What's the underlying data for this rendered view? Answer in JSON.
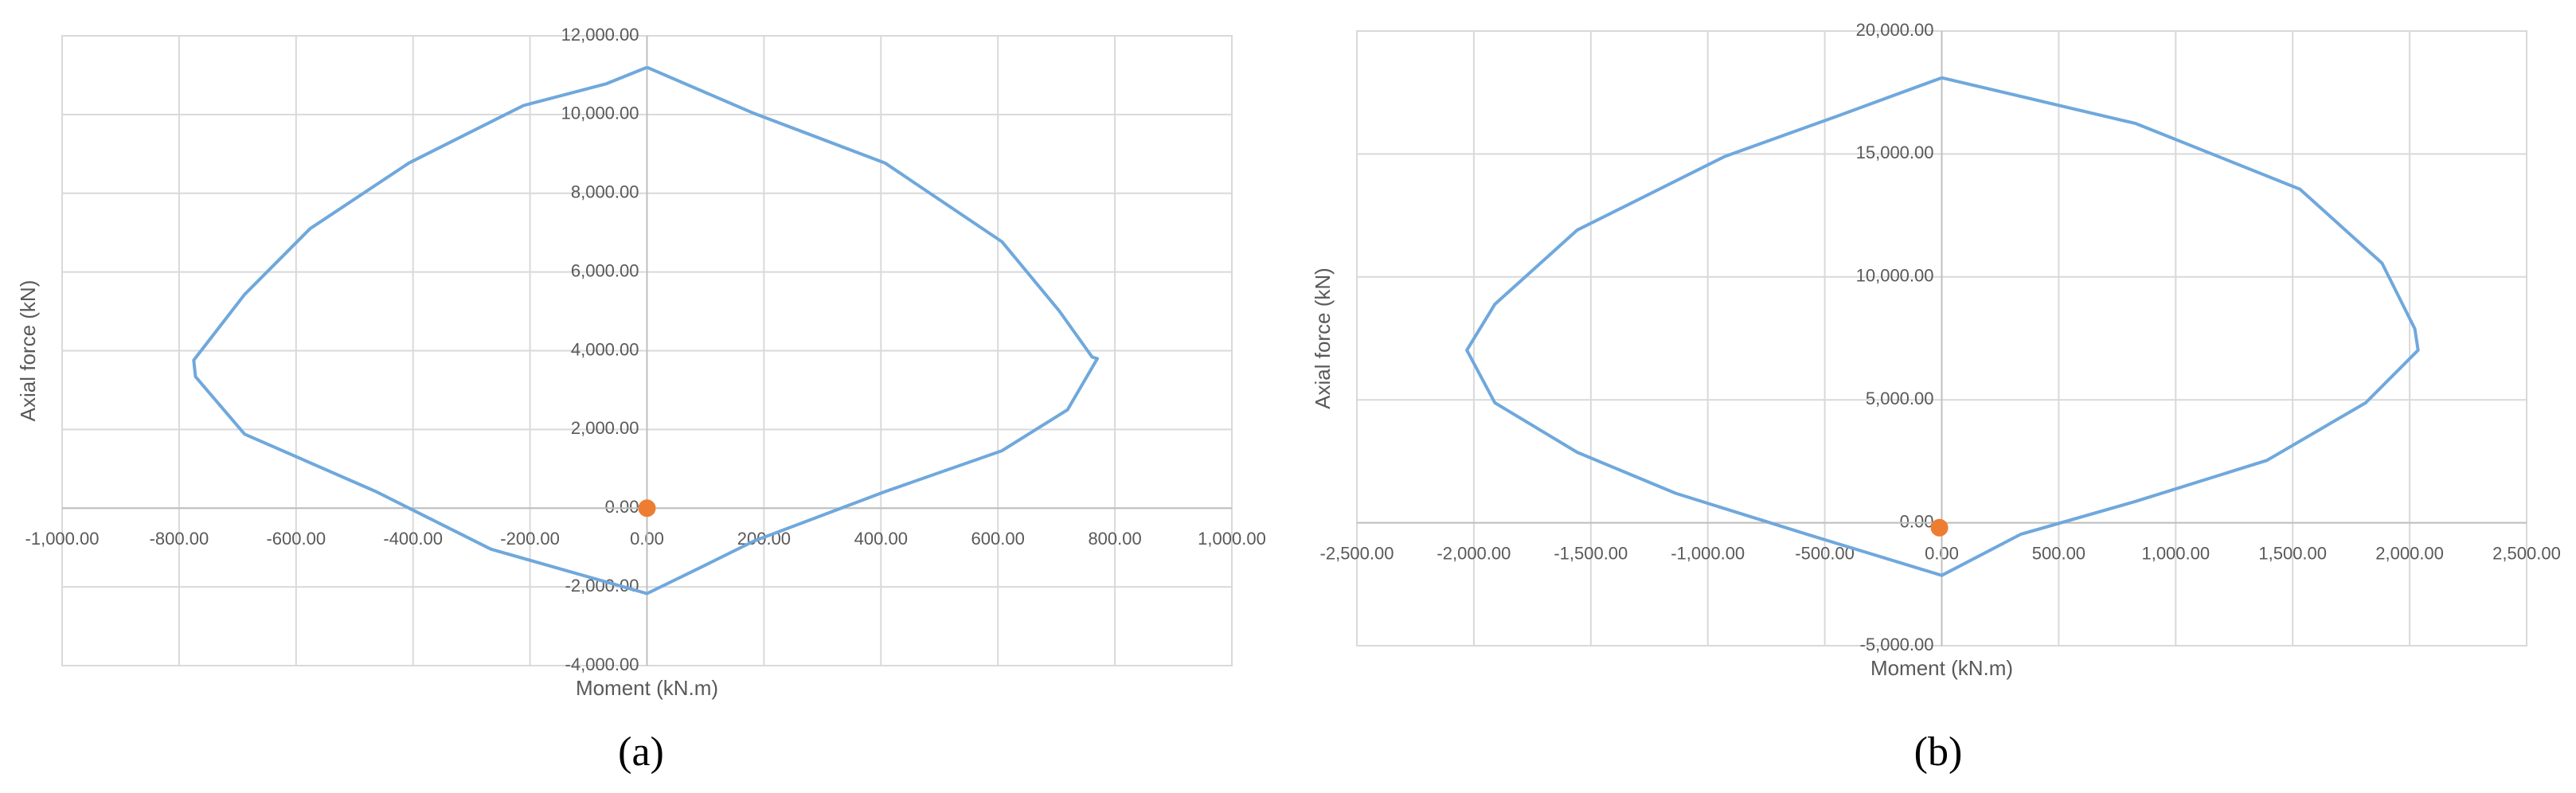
{
  "chart_data": [
    {
      "type": "line",
      "xlim": [
        -1000,
        1000
      ],
      "ylim": [
        -4000,
        12000
      ],
      "xticks": [
        {
          "value": -1000,
          "label": "-1,000.00"
        },
        {
          "value": -800,
          "label": "-800.00"
        },
        {
          "value": -600,
          "label": "-600.00"
        },
        {
          "value": -400,
          "label": "-400.00"
        },
        {
          "value": -200,
          "label": "-200.00"
        },
        {
          "value": 0,
          "label": "0.00"
        },
        {
          "value": 200,
          "label": "200.00"
        },
        {
          "value": 400,
          "label": "400.00"
        },
        {
          "value": 600,
          "label": "600.00"
        },
        {
          "value": 800,
          "label": "800.00"
        },
        {
          "value": 1000,
          "label": "1,000.00"
        }
      ],
      "yticks": [
        {
          "value": -4000,
          "label": "-4,000.00"
        },
        {
          "value": -2000,
          "label": "-2,000.00"
        },
        {
          "value": 0,
          "label": "0.00"
        },
        {
          "value": 2000,
          "label": "2,000.00"
        },
        {
          "value": 4000,
          "label": "4,000.00"
        },
        {
          "value": 6000,
          "label": "6,000.00"
        },
        {
          "value": 8000,
          "label": "8,000.00"
        },
        {
          "value": 10000,
          "label": "10,000.00"
        },
        {
          "value": 12000,
          "label": "12,000.00"
        }
      ],
      "x_label": "Moment (kN.m)",
      "y_label": "Axial force (kN)",
      "caption": "(a)",
      "grid": true,
      "series": [
        {
          "color": "#6fa8dc",
          "style": "line",
          "x": [
            0,
            183,
            407,
            607,
            705,
            761,
            770,
            719,
            607,
            407,
            183,
            98,
            0,
            -267,
            -463,
            -688,
            -772,
            -775,
            -688,
            -576,
            -407,
            -211,
            -70,
            0
          ],
          "values": [
            11200,
            10030,
            8770,
            6770,
            5010,
            3840,
            3800,
            2500,
            1460,
            420,
            -835,
            -1460,
            -2170,
            -1040,
            420,
            1880,
            3340,
            3760,
            5430,
            7100,
            8770,
            10230,
            10780,
            11200
          ]
        },
        {
          "color": "#ed7d31",
          "style": "point",
          "x": [
            0
          ],
          "values": [
            0
          ]
        }
      ]
    },
    {
      "type": "line",
      "xlim": [
        -2500,
        2500
      ],
      "ylim": [
        -5000,
        20000
      ],
      "xticks": [
        {
          "value": -2500,
          "label": "-2,500.00"
        },
        {
          "value": -2000,
          "label": "-2,000.00"
        },
        {
          "value": -1500,
          "label": "-1,500.00"
        },
        {
          "value": -1000,
          "label": "-1,000.00"
        },
        {
          "value": -500,
          "label": "-500.00"
        },
        {
          "value": 0,
          "label": "0.00"
        },
        {
          "value": 500,
          "label": "500.00"
        },
        {
          "value": 1000,
          "label": "1,000.00"
        },
        {
          "value": 1500,
          "label": "1,500.00"
        },
        {
          "value": 2000,
          "label": "2,000.00"
        },
        {
          "value": 2500,
          "label": "2,500.00"
        }
      ],
      "yticks": [
        {
          "value": -5000,
          "label": "-5,000.00"
        },
        {
          "value": 0,
          "label": "0.00"
        },
        {
          "value": 5000,
          "label": "5,000.00"
        },
        {
          "value": 10000,
          "label": "10,000.00"
        },
        {
          "value": 15000,
          "label": "15,000.00"
        },
        {
          "value": 20000,
          "label": "20,000.00"
        }
      ],
      "x_label": "Moment (kN.m)",
      "y_label": "Axial force (kN)",
      "caption": "(b)",
      "grid": true,
      "series": [
        {
          "color": "#6fa8dc",
          "style": "line",
          "x": [
            0,
            829,
            1531,
            1882,
            2022,
            2036,
            1812,
            1390,
            829,
            337,
            0,
            -576,
            -1138,
            -1559,
            -1910,
            -2030,
            -1910,
            -1559,
            -927,
            -435,
            0
          ],
          "values": [
            18100,
            16240,
            13570,
            10560,
            7890,
            7020,
            4880,
            2540,
            870,
            -470,
            -2140,
            -470,
            1200,
            2870,
            4880,
            7020,
            8890,
            11900,
            14900,
            16580,
            18100
          ]
        },
        {
          "color": "#ed7d31",
          "style": "point",
          "x": [
            -10
          ],
          "values": [
            -200
          ]
        }
      ]
    }
  ]
}
